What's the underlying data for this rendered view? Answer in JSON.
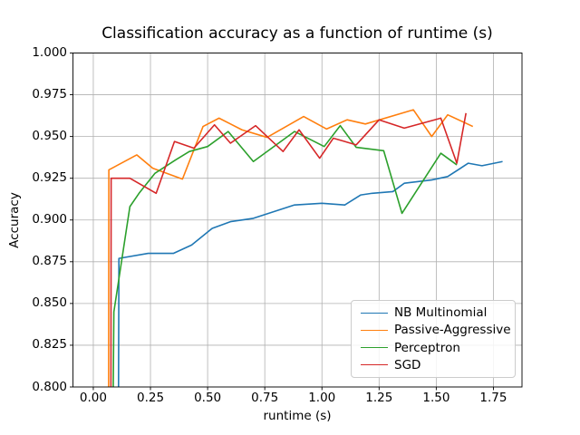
{
  "chart_data": {
    "type": "line",
    "title": "Classification accuracy as a function of runtime (s)",
    "xlabel": "runtime (s)",
    "ylabel": "Accuracy",
    "xlim": [
      -0.089,
      1.875
    ],
    "ylim": [
      0.8,
      1.0
    ],
    "grid": true,
    "legend_position": "lower right",
    "axis_color": "#000000",
    "grid_color": "#b0b0b0",
    "background_color": "#ffffff",
    "xticks": [
      0.0,
      0.25,
      0.5,
      0.75,
      1.0,
      1.25,
      1.5,
      1.75
    ],
    "xtick_labels": [
      "0.00",
      "0.25",
      "0.50",
      "0.75",
      "1.00",
      "1.25",
      "1.50",
      "1.75"
    ],
    "yticks": [
      0.8,
      0.825,
      0.85,
      0.875,
      0.9,
      0.925,
      0.95,
      0.975,
      1.0
    ],
    "ytick_labels": [
      "0.800",
      "0.825",
      "0.850",
      "0.875",
      "0.900",
      "0.925",
      "0.950",
      "0.975",
      "1.000"
    ],
    "series": [
      {
        "name": "NB Multinomial",
        "color": "#1f77b4",
        "points": [
          [
            0.11,
            0.78
          ],
          [
            0.112,
            0.877
          ],
          [
            0.24,
            0.88
          ],
          [
            0.35,
            0.88
          ],
          [
            0.43,
            0.885
          ],
          [
            0.52,
            0.895
          ],
          [
            0.6,
            0.899
          ],
          [
            0.7,
            0.901
          ],
          [
            0.88,
            0.909
          ],
          [
            1.0,
            0.91
          ],
          [
            1.1,
            0.909
          ],
          [
            1.17,
            0.915
          ],
          [
            1.22,
            0.916
          ],
          [
            1.31,
            0.917
          ],
          [
            1.36,
            0.922
          ],
          [
            1.48,
            0.924
          ],
          [
            1.55,
            0.926
          ],
          [
            1.64,
            0.934
          ],
          [
            1.7,
            0.9325
          ],
          [
            1.79,
            0.935
          ]
        ]
      },
      {
        "name": "Passive-Aggressive",
        "color": "#ff7f0e",
        "points": [
          [
            0.067,
            0.78
          ],
          [
            0.068,
            0.93
          ],
          [
            0.19,
            0.939
          ],
          [
            0.26,
            0.931
          ],
          [
            0.39,
            0.9245
          ],
          [
            0.48,
            0.956
          ],
          [
            0.55,
            0.961
          ],
          [
            0.65,
            0.954
          ],
          [
            0.76,
            0.9495
          ],
          [
            0.92,
            0.962
          ],
          [
            1.02,
            0.9545
          ],
          [
            1.11,
            0.96
          ],
          [
            1.19,
            0.9575
          ],
          [
            1.4,
            0.966
          ],
          [
            1.48,
            0.95
          ],
          [
            1.55,
            0.963
          ],
          [
            1.66,
            0.956
          ]
        ]
      },
      {
        "name": "Perceptron",
        "color": "#2ca02c",
        "points": [
          [
            0.086,
            0.78
          ],
          [
            0.09,
            0.845
          ],
          [
            0.16,
            0.908
          ],
          [
            0.2,
            0.916
          ],
          [
            0.27,
            0.928
          ],
          [
            0.36,
            0.936
          ],
          [
            0.42,
            0.941
          ],
          [
            0.5,
            0.944
          ],
          [
            0.59,
            0.953
          ],
          [
            0.7,
            0.935
          ],
          [
            0.88,
            0.953
          ],
          [
            1.01,
            0.944
          ],
          [
            1.08,
            0.9565
          ],
          [
            1.15,
            0.9435
          ],
          [
            1.27,
            0.9415
          ],
          [
            1.35,
            0.904
          ],
          [
            1.52,
            0.94
          ],
          [
            1.59,
            0.933
          ]
        ]
      },
      {
        "name": "SGD",
        "color": "#d62728",
        "points": [
          [
            0.077,
            0.78
          ],
          [
            0.078,
            0.925
          ],
          [
            0.16,
            0.925
          ],
          [
            0.275,
            0.916
          ],
          [
            0.355,
            0.947
          ],
          [
            0.44,
            0.943
          ],
          [
            0.53,
            0.957
          ],
          [
            0.6,
            0.946
          ],
          [
            0.71,
            0.9565
          ],
          [
            0.83,
            0.941
          ],
          [
            0.9,
            0.954
          ],
          [
            0.99,
            0.937
          ],
          [
            1.05,
            0.949
          ],
          [
            1.15,
            0.945
          ],
          [
            1.25,
            0.96
          ],
          [
            1.36,
            0.955
          ],
          [
            1.52,
            0.961
          ],
          [
            1.59,
            0.934
          ],
          [
            1.63,
            0.964
          ]
        ]
      }
    ]
  }
}
